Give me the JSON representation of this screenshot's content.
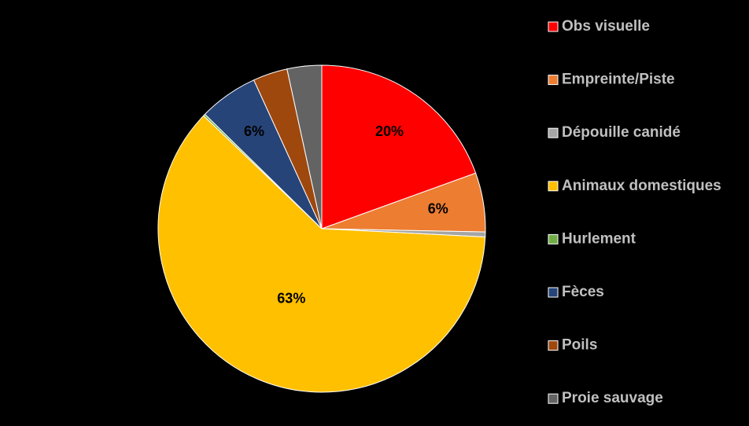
{
  "chart_data": {
    "type": "pie",
    "categories": [
      "Obs visuelle",
      "Empreinte/Piste",
      "Dépouille canidé",
      "Animaux domestiques",
      "Hurlement",
      "Fèces",
      "Poils",
      "Proie sauvage"
    ],
    "values": [
      20,
      6,
      0.5,
      63,
      0.2,
      6,
      3.5,
      3.5
    ],
    "value_labels": [
      "20%",
      "6%",
      null,
      "63%",
      null,
      "6%",
      null,
      null
    ],
    "colors": [
      "#ff0000",
      "#ed7d31",
      "#a5a5a5",
      "#ffc000",
      "#70ad47",
      "#264478",
      "#9e480e",
      "#636363"
    ],
    "legend": "right"
  }
}
